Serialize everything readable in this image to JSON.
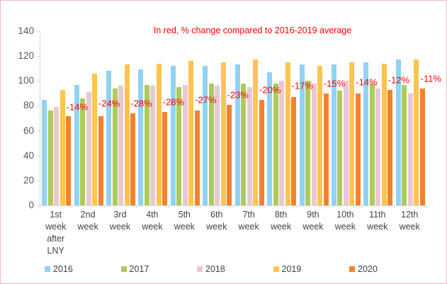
{
  "chart_data": {
    "type": "bar",
    "title": "In red, % change compared to 2016-2019 average",
    "title_color": "#ff0000",
    "categories": [
      "1st week after LNY",
      "2nd week",
      "3rd week",
      "4th week",
      "5th week",
      "6th week",
      "7th week",
      "8th week",
      "9th week",
      "10th week",
      "11th week",
      "12th week"
    ],
    "series": [
      {
        "name": "2016",
        "color": "#92d2f2",
        "values": [
          85,
          97,
          108,
          109,
          112,
          112,
          113,
          107,
          113,
          113,
          115,
          117
        ]
      },
      {
        "name": "2017",
        "color": "#accb59",
        "values": [
          76,
          86,
          94,
          97,
          95,
          98,
          98,
          98,
          100,
          92,
          98,
          97
        ]
      },
      {
        "name": "2018",
        "color": "#eac7d4",
        "values": [
          79,
          91,
          96,
          96,
          97,
          96,
          95,
          100,
          98,
          100,
          94,
          90
        ]
      },
      {
        "name": "2019",
        "color": "#fec44f",
        "values": [
          93,
          106,
          113,
          114,
          116,
          115,
          117,
          115,
          112,
          115,
          114,
          117
        ]
      },
      {
        "name": "2020",
        "color": "#f5812c",
        "values": [
          72,
          72,
          74,
          75,
          76,
          81,
          85,
          87,
          90,
          90,
          93,
          94
        ]
      }
    ],
    "pct_change_labels": [
      {
        "text": "-14%",
        "anchor_value": 79
      },
      {
        "text": "-24%",
        "anchor_value": 82
      },
      {
        "text": "-28%",
        "anchor_value": 82
      },
      {
        "text": "-28%",
        "anchor_value": 83
      },
      {
        "text": "-27%",
        "anchor_value": 85
      },
      {
        "text": "-23%",
        "anchor_value": 89
      },
      {
        "text": "-20%",
        "anchor_value": 93
      },
      {
        "text": "-17%",
        "anchor_value": 96
      },
      {
        "text": "-15%",
        "anchor_value": 98
      },
      {
        "text": "-14%",
        "anchor_value": 99
      },
      {
        "text": "-12%",
        "anchor_value": 101
      },
      {
        "text": "-11%",
        "anchor_value": 102
      }
    ],
    "ylim": [
      0,
      140
    ],
    "yticks": [
      0,
      20,
      40,
      60,
      80,
      100,
      120,
      140
    ],
    "grid": false,
    "legend_position": "bottom",
    "axis_color": "#d4dbe2",
    "tick_label_color": "#595959"
  }
}
